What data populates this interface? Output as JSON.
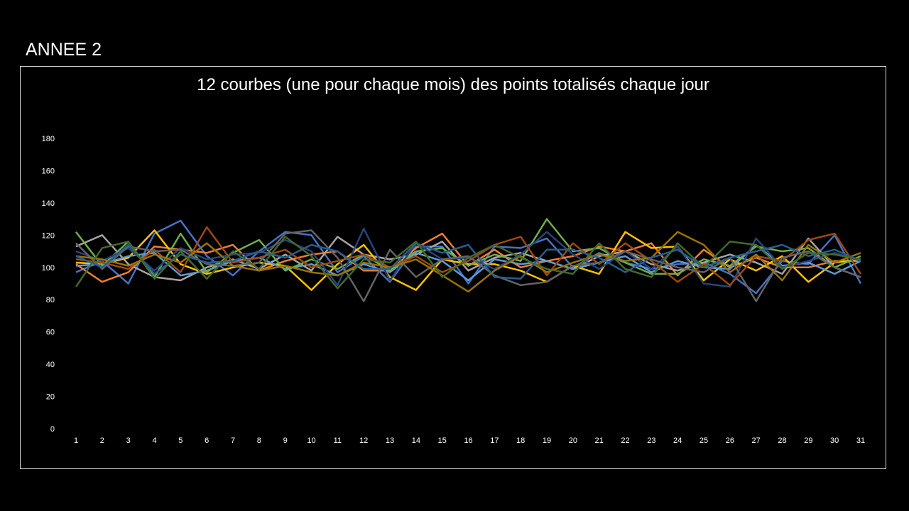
{
  "slide": {
    "title": "ANNEE 2"
  },
  "chart_data": {
    "type": "line",
    "title": "12 courbes (une pour chaque mois) des points totalisés chaque jour",
    "xlabel": "",
    "ylabel": "",
    "ylim": [
      0,
      180
    ],
    "yticks": [
      "0",
      "20",
      "40",
      "60",
      "80",
      "100",
      "120",
      "140",
      "160",
      "180"
    ],
    "x": [
      1,
      2,
      3,
      4,
      5,
      6,
      7,
      8,
      9,
      10,
      11,
      12,
      13,
      14,
      15,
      16,
      17,
      18,
      19,
      20,
      21,
      22,
      23,
      24,
      25,
      26,
      27,
      28,
      29,
      30,
      31
    ],
    "grid": false,
    "legend": "none",
    "series": [
      {
        "color": "#4472c4",
        "values": [
          97,
          104,
          90,
          121,
          129,
          107,
          95,
          110,
          122,
          120,
          97,
          107,
          91,
          113,
          113,
          90,
          113,
          112,
          118,
          100,
          109,
          103,
          99,
          102,
          103,
          96,
          84,
          104,
          102,
          120,
          90
        ]
      },
      {
        "color": "#ed7d31",
        "values": [
          102,
          91,
          97,
          113,
          111,
          109,
          114,
          98,
          104,
          108,
          110,
          98,
          98,
          112,
          121,
          101,
          111,
          100,
          104,
          107,
          113,
          110,
          115,
          95,
          111,
          100,
          106,
          100,
          100,
          104,
          104
        ]
      },
      {
        "color": "#a5a5a5",
        "values": [
          113,
          120,
          102,
          94,
          92,
          100,
          105,
          99,
          108,
          98,
          119,
          108,
          105,
          108,
          116,
          98,
          106,
          109,
          104,
          99,
          107,
          110,
          102,
          98,
          103,
          108,
          103,
          96,
          118,
          100,
          94
        ]
      },
      {
        "color": "#ffc000",
        "values": [
          103,
          102,
          106,
          123,
          102,
          96,
          100,
          103,
          101,
          86,
          102,
          114,
          94,
          86,
          105,
          102,
          102,
          98,
          91,
          101,
          96,
          122,
          112,
          113,
          92,
          105,
          98,
          107,
          91,
          103,
          105
        ]
      },
      {
        "color": "#5b9bd5",
        "values": [
          101,
          102,
          107,
          109,
          95,
          98,
          104,
          106,
          99,
          102,
          95,
          102,
          97,
          109,
          104,
          92,
          105,
          102,
          104,
          99,
          103,
          107,
          97,
          104,
          100,
          99,
          114,
          101,
          103,
          96,
          104
        ]
      },
      {
        "color": "#70ad47",
        "values": [
          122,
          101,
          116,
          94,
          121,
          97,
          109,
          117,
          98,
          105,
          99,
          108,
          98,
          110,
          112,
          101,
          108,
          104,
          130,
          110,
          112,
          103,
          96,
          96,
          105,
          101,
          113,
          110,
          112,
          100,
          107
        ]
      },
      {
        "color": "#264478",
        "values": [
          110,
          104,
          112,
          98,
          112,
          105,
          108,
          109,
          117,
          110,
          89,
          124,
          92,
          115,
          105,
          106,
          99,
          108,
          122,
          108,
          99,
          110,
          99,
          113,
          90,
          88,
          118,
          100,
          104,
          109,
          104
        ]
      },
      {
        "color": "#9e480e",
        "values": [
          105,
          103,
          99,
          111,
          97,
          125,
          103,
          106,
          111,
          100,
          104,
          108,
          100,
          107,
          97,
          104,
          114,
          119,
          95,
          115,
          102,
          115,
          104,
          91,
          102,
          89,
          107,
          104,
          117,
          121,
          96
        ]
      },
      {
        "color": "#636363",
        "values": [
          115,
          99,
          113,
          110,
          111,
          102,
          101,
          103,
          121,
          123,
          106,
          79,
          111,
          94,
          105,
          107,
          95,
          89,
          91,
          101,
          103,
          110,
          105,
          100,
          97,
          106,
          79,
          106,
          110,
          100,
          94
        ]
      },
      {
        "color": "#997300",
        "values": [
          107,
          105,
          101,
          108,
          103,
          115,
          101,
          98,
          101,
          97,
          95,
          103,
          100,
          105,
          95,
          85,
          98,
          107,
          97,
          103,
          108,
          104,
          106,
          122,
          114,
          97,
          108,
          92,
          114,
          103,
          109
        ]
      },
      {
        "color": "#255e91",
        "values": [
          107,
          100,
          114,
          96,
          108,
          103,
          104,
          110,
          106,
          114,
          110,
          99,
          99,
          115,
          109,
          114,
          94,
          93,
          111,
          111,
          106,
          97,
          106,
          111,
          100,
          106,
          110,
          114,
          107,
          111,
          104
        ]
      },
      {
        "color": "#43682b",
        "values": [
          88,
          112,
          116,
          93,
          110,
          93,
          110,
          99,
          119,
          107,
          87,
          105,
          103,
          116,
          94,
          106,
          114,
          106,
          99,
          96,
          115,
          99,
          94,
          115,
          100,
          116,
          114,
          99,
          109,
          108,
          105
        ]
      }
    ]
  }
}
